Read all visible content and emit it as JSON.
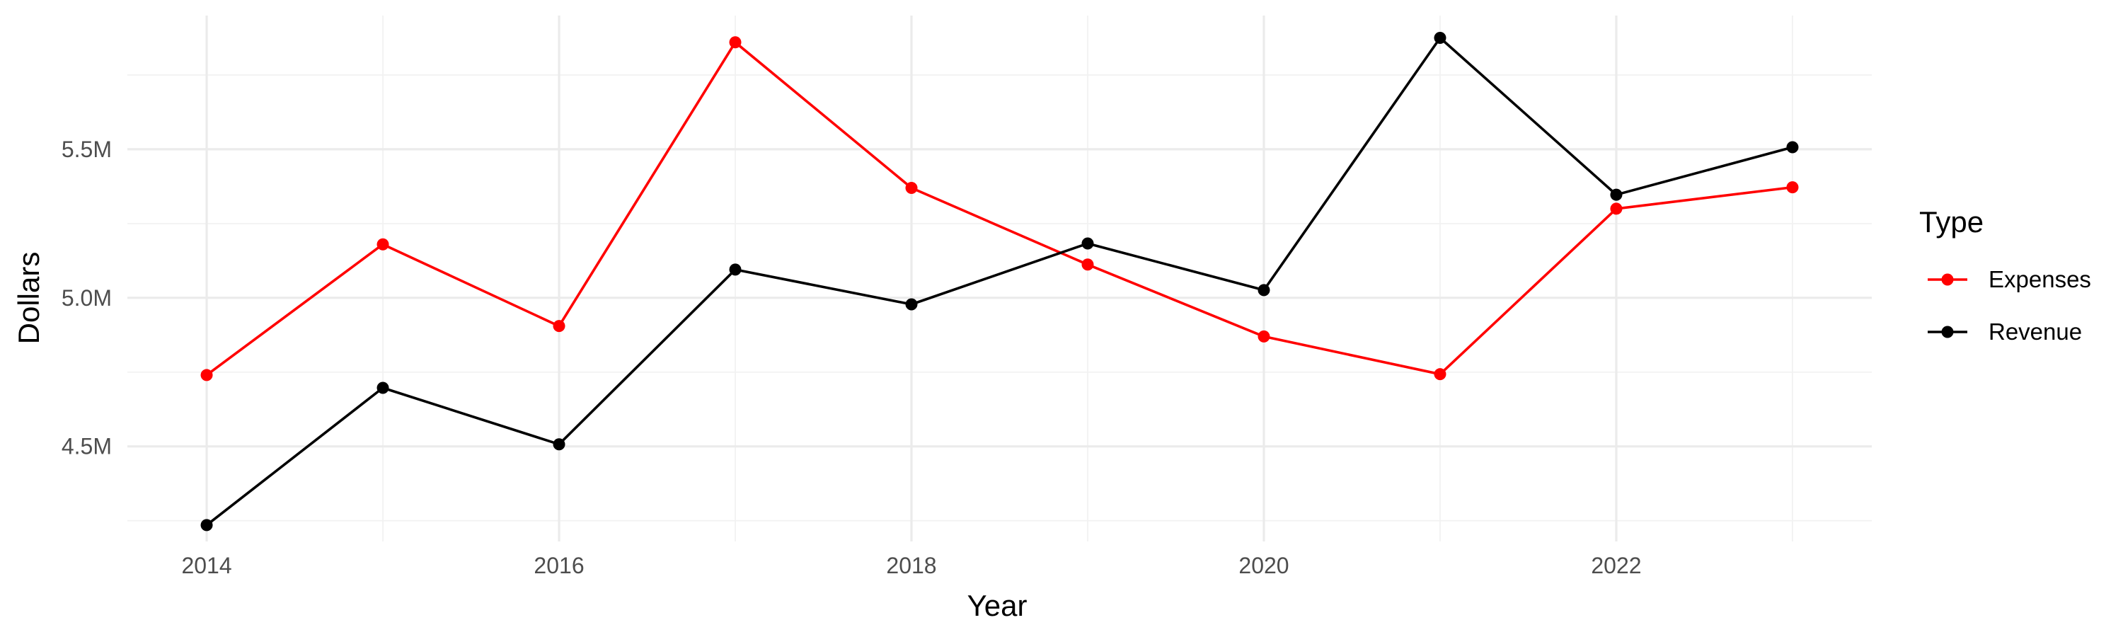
{
  "chart_data": {
    "type": "line",
    "title": "",
    "xlabel": "Year",
    "ylabel": "Dollars",
    "x": [
      2014,
      2015,
      2016,
      2017,
      2018,
      2019,
      2020,
      2021,
      2022,
      2023
    ],
    "xlim": [
      2013.55,
      2023.45
    ],
    "ylim": [
      4180000,
      5950000
    ],
    "x_ticks": [
      2014,
      2016,
      2018,
      2020,
      2022
    ],
    "x_tick_labels": [
      "2014",
      "2016",
      "2018",
      "2020",
      "2022"
    ],
    "x_minor_ticks": [
      2015,
      2017,
      2019,
      2021,
      2023
    ],
    "y_ticks": [
      4500000,
      5000000,
      5500000
    ],
    "y_tick_labels": [
      "4.5M",
      "5.0M",
      "5.5M"
    ],
    "y_minor_ticks": [
      4250000,
      4750000,
      5250000,
      5750000
    ],
    "grid": true,
    "legend": {
      "title": "Type",
      "position": "right"
    },
    "series": [
      {
        "name": "Expenses",
        "color": "#ff0000",
        "values": [
          4740000,
          5180000,
          4905000,
          5860000,
          5370000,
          5112000,
          4870000,
          4743000,
          5300000,
          5372000
        ]
      },
      {
        "name": "Revenue",
        "color": "#000000",
        "values": [
          4235000,
          4697000,
          4507000,
          5095000,
          4978000,
          5183000,
          5026000,
          5875000,
          5347000,
          5507000
        ]
      }
    ]
  }
}
